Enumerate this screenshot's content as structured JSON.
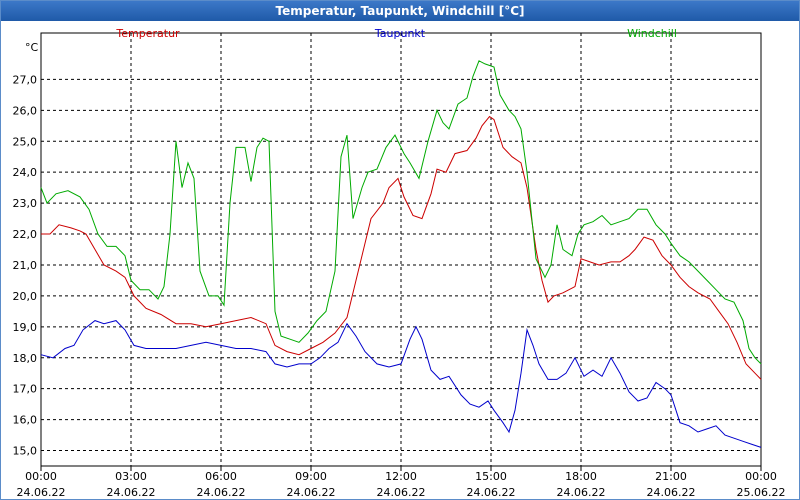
{
  "chart_data": {
    "type": "line",
    "title": "Temperatur, Taupunkt, Windchill [°C]",
    "ylabel": "°C",
    "ylim": [
      14.5,
      28.5
    ],
    "yticks": [
      15.0,
      16.0,
      17.0,
      18.0,
      19.0,
      20.0,
      21.0,
      22.0,
      23.0,
      24.0,
      25.0,
      26.0,
      27.0
    ],
    "ytick_labels": [
      "15,0",
      "16,0",
      "17,0",
      "18,0",
      "19,0",
      "20,0",
      "21,0",
      "22,0",
      "23,0",
      "24,0",
      "25,0",
      "26,0",
      "27,0"
    ],
    "xlim": [
      0,
      24
    ],
    "xticks": [
      {
        "x": 0,
        "time": "00:00",
        "date": "24.06.22"
      },
      {
        "x": 3,
        "time": "03:00",
        "date": "24.06.22"
      },
      {
        "x": 6,
        "time": "06:00",
        "date": "24.06.22"
      },
      {
        "x": 9,
        "time": "09:00",
        "date": "24.06.22"
      },
      {
        "x": 12,
        "time": "12:00",
        "date": "24.06.22"
      },
      {
        "x": 15,
        "time": "15:00",
        "date": "24.06.22"
      },
      {
        "x": 18,
        "time": "18:00",
        "date": "24.06.22"
      },
      {
        "x": 21,
        "time": "21:00",
        "date": "24.06.22"
      },
      {
        "x": 24,
        "time": "00:00",
        "date": "25.06.22"
      }
    ],
    "grid": true,
    "series": [
      {
        "name": "Temperatur",
        "color": "#cc0000",
        "points": [
          [
            0,
            22.0
          ],
          [
            0.3,
            22.0
          ],
          [
            0.6,
            22.3
          ],
          [
            1.0,
            22.2
          ],
          [
            1.3,
            22.1
          ],
          [
            1.5,
            22.0
          ],
          [
            1.8,
            21.5
          ],
          [
            2.1,
            21.0
          ],
          [
            2.5,
            20.8
          ],
          [
            2.8,
            20.6
          ],
          [
            3.1,
            20.0
          ],
          [
            3.5,
            19.6
          ],
          [
            4.0,
            19.4
          ],
          [
            4.5,
            19.1
          ],
          [
            5.0,
            19.1
          ],
          [
            5.5,
            19.0
          ],
          [
            6.0,
            19.1
          ],
          [
            6.5,
            19.2
          ],
          [
            7.0,
            19.3
          ],
          [
            7.5,
            19.1
          ],
          [
            7.8,
            18.4
          ],
          [
            8.2,
            18.2
          ],
          [
            8.6,
            18.1
          ],
          [
            9.0,
            18.3
          ],
          [
            9.4,
            18.5
          ],
          [
            9.8,
            18.8
          ],
          [
            10.2,
            19.3
          ],
          [
            10.5,
            20.5
          ],
          [
            11.0,
            22.5
          ],
          [
            11.4,
            23.0
          ],
          [
            11.6,
            23.5
          ],
          [
            11.9,
            23.8
          ],
          [
            12.1,
            23.2
          ],
          [
            12.4,
            22.6
          ],
          [
            12.7,
            22.5
          ],
          [
            13.0,
            23.3
          ],
          [
            13.2,
            24.1
          ],
          [
            13.5,
            24.0
          ],
          [
            13.8,
            24.6
          ],
          [
            14.2,
            24.7
          ],
          [
            14.5,
            25.1
          ],
          [
            14.7,
            25.5
          ],
          [
            14.95,
            25.8
          ],
          [
            15.1,
            25.7
          ],
          [
            15.4,
            24.8
          ],
          [
            15.7,
            24.5
          ],
          [
            16.0,
            24.3
          ],
          [
            16.2,
            23.5
          ],
          [
            16.5,
            21.5
          ],
          [
            16.7,
            20.5
          ],
          [
            16.9,
            19.8
          ],
          [
            17.1,
            20.0
          ],
          [
            17.4,
            20.1
          ],
          [
            17.6,
            20.2
          ],
          [
            17.8,
            20.3
          ],
          [
            18.0,
            21.2
          ],
          [
            18.3,
            21.1
          ],
          [
            18.6,
            21.0
          ],
          [
            19.0,
            21.1
          ],
          [
            19.3,
            21.1
          ],
          [
            19.6,
            21.3
          ],
          [
            19.8,
            21.5
          ],
          [
            20.1,
            21.9
          ],
          [
            20.4,
            21.8
          ],
          [
            20.7,
            21.3
          ],
          [
            21.0,
            21.0
          ],
          [
            21.3,
            20.6
          ],
          [
            21.6,
            20.3
          ],
          [
            21.9,
            20.1
          ],
          [
            22.3,
            19.9
          ],
          [
            22.6,
            19.5
          ],
          [
            22.9,
            19.1
          ],
          [
            23.2,
            18.5
          ],
          [
            23.5,
            17.8
          ],
          [
            23.8,
            17.5
          ],
          [
            24.0,
            17.3
          ]
        ]
      },
      {
        "name": "Taupunkt",
        "color": "#0000cc",
        "points": [
          [
            0,
            18.1
          ],
          [
            0.4,
            18.0
          ],
          [
            0.8,
            18.3
          ],
          [
            1.1,
            18.4
          ],
          [
            1.4,
            18.9
          ],
          [
            1.8,
            19.2
          ],
          [
            2.1,
            19.1
          ],
          [
            2.5,
            19.2
          ],
          [
            2.8,
            18.9
          ],
          [
            3.1,
            18.4
          ],
          [
            3.5,
            18.3
          ],
          [
            4.0,
            18.3
          ],
          [
            4.5,
            18.3
          ],
          [
            5.0,
            18.4
          ],
          [
            5.5,
            18.5
          ],
          [
            6.0,
            18.4
          ],
          [
            6.5,
            18.3
          ],
          [
            7.0,
            18.3
          ],
          [
            7.5,
            18.2
          ],
          [
            7.8,
            17.8
          ],
          [
            8.2,
            17.7
          ],
          [
            8.6,
            17.8
          ],
          [
            9.0,
            17.8
          ],
          [
            9.3,
            18.0
          ],
          [
            9.6,
            18.3
          ],
          [
            9.9,
            18.5
          ],
          [
            10.2,
            19.1
          ],
          [
            10.5,
            18.7
          ],
          [
            10.8,
            18.2
          ],
          [
            11.2,
            17.8
          ],
          [
            11.6,
            17.7
          ],
          [
            12.0,
            17.8
          ],
          [
            12.3,
            18.6
          ],
          [
            12.5,
            19.0
          ],
          [
            12.7,
            18.6
          ],
          [
            13.0,
            17.6
          ],
          [
            13.3,
            17.3
          ],
          [
            13.6,
            17.4
          ],
          [
            14.0,
            16.8
          ],
          [
            14.3,
            16.5
          ],
          [
            14.6,
            16.4
          ],
          [
            14.9,
            16.6
          ],
          [
            15.1,
            16.3
          ],
          [
            15.4,
            15.9
          ],
          [
            15.6,
            15.6
          ],
          [
            15.8,
            16.3
          ],
          [
            16.0,
            17.5
          ],
          [
            16.2,
            18.9
          ],
          [
            16.4,
            18.4
          ],
          [
            16.6,
            17.8
          ],
          [
            16.9,
            17.3
          ],
          [
            17.2,
            17.3
          ],
          [
            17.5,
            17.5
          ],
          [
            17.8,
            18.0
          ],
          [
            18.1,
            17.4
          ],
          [
            18.4,
            17.6
          ],
          [
            18.7,
            17.4
          ],
          [
            19.0,
            18.0
          ],
          [
            19.3,
            17.5
          ],
          [
            19.6,
            16.9
          ],
          [
            19.9,
            16.6
          ],
          [
            20.2,
            16.7
          ],
          [
            20.5,
            17.2
          ],
          [
            20.8,
            17.0
          ],
          [
            21.0,
            16.8
          ],
          [
            21.3,
            15.9
          ],
          [
            21.6,
            15.8
          ],
          [
            21.9,
            15.6
          ],
          [
            22.2,
            15.7
          ],
          [
            22.5,
            15.8
          ],
          [
            22.8,
            15.5
          ],
          [
            23.1,
            15.4
          ],
          [
            23.4,
            15.3
          ],
          [
            23.7,
            15.2
          ],
          [
            24.0,
            15.1
          ]
        ]
      },
      {
        "name": "Windchill",
        "color": "#00aa00",
        "points": [
          [
            0,
            23.5
          ],
          [
            0.2,
            23.0
          ],
          [
            0.5,
            23.3
          ],
          [
            0.9,
            23.4
          ],
          [
            1.3,
            23.2
          ],
          [
            1.6,
            22.8
          ],
          [
            1.9,
            22.0
          ],
          [
            2.2,
            21.6
          ],
          [
            2.5,
            21.6
          ],
          [
            2.8,
            21.3
          ],
          [
            3.0,
            20.5
          ],
          [
            3.3,
            20.2
          ],
          [
            3.6,
            20.2
          ],
          [
            3.9,
            19.9
          ],
          [
            4.1,
            20.3
          ],
          [
            4.3,
            22.0
          ],
          [
            4.5,
            25.0
          ],
          [
            4.7,
            23.5
          ],
          [
            4.9,
            24.3
          ],
          [
            5.1,
            23.8
          ],
          [
            5.3,
            20.8
          ],
          [
            5.6,
            20.0
          ],
          [
            5.9,
            20.0
          ],
          [
            6.1,
            19.7
          ],
          [
            6.3,
            23.0
          ],
          [
            6.5,
            24.8
          ],
          [
            6.8,
            24.8
          ],
          [
            7.0,
            23.7
          ],
          [
            7.2,
            24.8
          ],
          [
            7.4,
            25.1
          ],
          [
            7.6,
            25.0
          ],
          [
            7.8,
            19.5
          ],
          [
            8.0,
            18.7
          ],
          [
            8.3,
            18.6
          ],
          [
            8.6,
            18.5
          ],
          [
            8.9,
            18.8
          ],
          [
            9.2,
            19.2
          ],
          [
            9.5,
            19.5
          ],
          [
            9.8,
            20.8
          ],
          [
            10.0,
            24.5
          ],
          [
            10.2,
            25.2
          ],
          [
            10.4,
            22.5
          ],
          [
            10.7,
            23.5
          ],
          [
            10.9,
            24.0
          ],
          [
            11.2,
            24.1
          ],
          [
            11.5,
            24.8
          ],
          [
            11.8,
            25.2
          ],
          [
            12.1,
            24.6
          ],
          [
            12.3,
            24.3
          ],
          [
            12.6,
            23.8
          ],
          [
            12.9,
            25.0
          ],
          [
            13.2,
            26.0
          ],
          [
            13.4,
            25.6
          ],
          [
            13.6,
            25.4
          ],
          [
            13.9,
            26.2
          ],
          [
            14.2,
            26.4
          ],
          [
            14.4,
            27.1
          ],
          [
            14.6,
            27.6
          ],
          [
            14.8,
            27.5
          ],
          [
            15.1,
            27.4
          ],
          [
            15.3,
            26.5
          ],
          [
            15.6,
            26.0
          ],
          [
            15.8,
            25.8
          ],
          [
            16.0,
            25.4
          ],
          [
            16.2,
            24.0
          ],
          [
            16.5,
            21.2
          ],
          [
            16.8,
            20.6
          ],
          [
            17.0,
            21.0
          ],
          [
            17.2,
            22.3
          ],
          [
            17.4,
            21.5
          ],
          [
            17.7,
            21.3
          ],
          [
            17.9,
            22.0
          ],
          [
            18.1,
            22.3
          ],
          [
            18.4,
            22.4
          ],
          [
            18.7,
            22.6
          ],
          [
            19.0,
            22.3
          ],
          [
            19.3,
            22.4
          ],
          [
            19.6,
            22.5
          ],
          [
            19.9,
            22.8
          ],
          [
            20.2,
            22.8
          ],
          [
            20.5,
            22.3
          ],
          [
            20.8,
            22.0
          ],
          [
            21.0,
            21.7
          ],
          [
            21.3,
            21.3
          ],
          [
            21.6,
            21.1
          ],
          [
            21.9,
            20.8
          ],
          [
            22.2,
            20.5
          ],
          [
            22.5,
            20.2
          ],
          [
            22.8,
            19.9
          ],
          [
            23.1,
            19.8
          ],
          [
            23.4,
            19.2
          ],
          [
            23.6,
            18.3
          ],
          [
            23.8,
            18.0
          ],
          [
            24.0,
            17.8
          ]
        ]
      }
    ]
  }
}
